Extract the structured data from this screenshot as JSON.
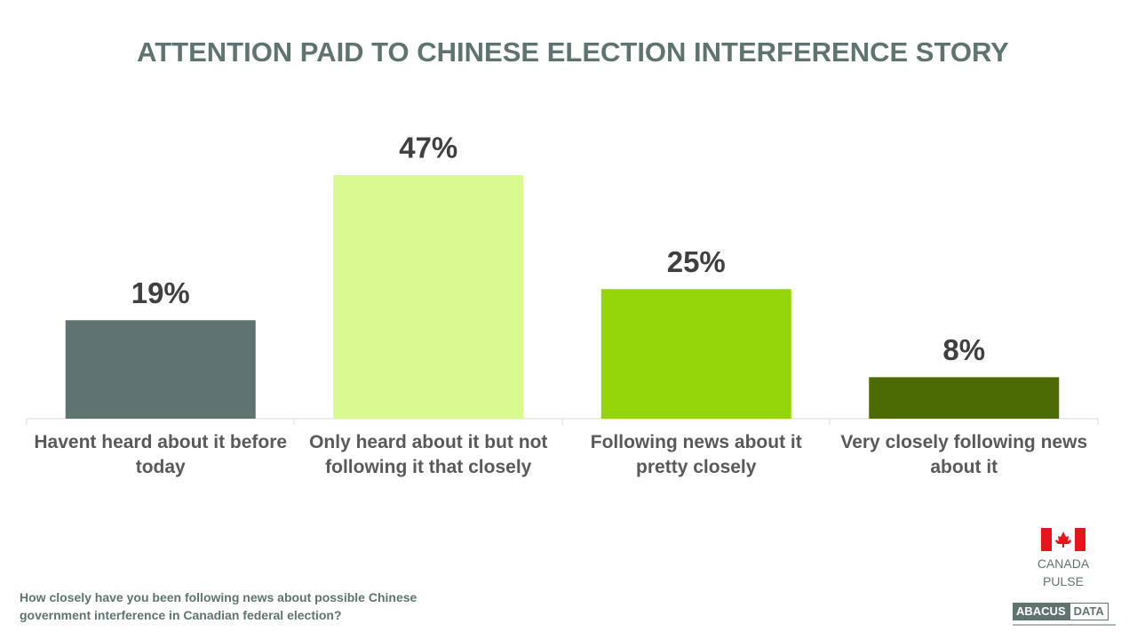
{
  "chart_data": {
    "type": "bar",
    "title": "ATTENTION PAID TO CHINESE ELECTION INTERFERENCE STORY",
    "categories": [
      "Havent heard about it before today",
      "Only heard about it but not following it that closely",
      "Following news about it pretty closely",
      "Very closely following news about it"
    ],
    "values": [
      19,
      47,
      25,
      8
    ],
    "value_labels": [
      "19%",
      "47%",
      "25%",
      "8%"
    ],
    "colors": [
      "#5f7470",
      "#d9f991",
      "#95d60a",
      "#4c6b05"
    ]
  },
  "footnote": "How closely have you been following news about possible Chinese government interference in Canadian federal election?",
  "badge": {
    "line1": "CANADA",
    "line2": "PULSE"
  },
  "logo": {
    "left": "ABACUS",
    "right": "DATA"
  }
}
